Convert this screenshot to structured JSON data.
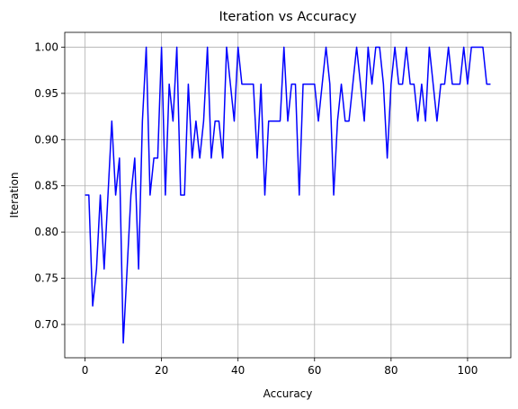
{
  "chart_data": {
    "type": "line",
    "title": "Iteration vs Accuracy",
    "xlabel": "Accuracy",
    "ylabel": "Iteration",
    "xlim": [
      -5.3,
      111.3
    ],
    "ylim": [
      0.664,
      1.016
    ],
    "xticks": [
      0,
      20,
      40,
      60,
      80,
      100
    ],
    "xtick_labels": [
      "0",
      "20",
      "40",
      "60",
      "80",
      "100"
    ],
    "yticks": [
      0.7,
      0.75,
      0.8,
      0.85,
      0.9,
      0.95,
      1.0
    ],
    "ytick_labels": [
      "0.70",
      "0.75",
      "0.80",
      "0.85",
      "0.90",
      "0.95",
      "1.00"
    ],
    "grid": true,
    "series": [
      {
        "color": "#0000ff",
        "x": [
          0,
          1,
          2,
          3,
          4,
          5,
          6,
          7,
          8,
          9,
          10,
          11,
          12,
          13,
          14,
          15,
          16,
          17,
          18,
          19,
          20,
          21,
          22,
          23,
          24,
          25,
          26,
          27,
          28,
          29,
          30,
          31,
          32,
          33,
          34,
          35,
          36,
          37,
          38,
          39,
          40,
          41,
          42,
          43,
          44,
          45,
          46,
          47,
          48,
          49,
          50,
          51,
          52,
          53,
          54,
          55,
          56,
          57,
          58,
          59,
          60,
          61,
          62,
          63,
          64,
          65,
          66,
          67,
          68,
          69,
          70,
          71,
          72,
          73,
          74,
          75,
          76,
          77,
          78,
          79,
          80,
          81,
          82,
          83,
          84,
          85,
          86,
          87,
          88,
          89,
          90,
          91,
          92,
          93,
          94,
          95,
          96,
          97,
          98,
          99,
          100,
          101,
          102,
          103,
          104,
          105,
          106
        ],
        "y": [
          0.84,
          0.84,
          0.72,
          0.76,
          0.84,
          0.76,
          0.84,
          0.92,
          0.84,
          0.88,
          0.68,
          0.76,
          0.84,
          0.88,
          0.76,
          0.92,
          1.0,
          0.84,
          0.88,
          0.88,
          1.0,
          0.84,
          0.96,
          0.92,
          1.0,
          0.84,
          0.84,
          0.96,
          0.88,
          0.92,
          0.88,
          0.92,
          1.0,
          0.88,
          0.92,
          0.92,
          0.88,
          1.0,
          0.96,
          0.92,
          1.0,
          0.96,
          0.96,
          0.96,
          0.96,
          0.88,
          0.96,
          0.84,
          0.92,
          0.92,
          0.92,
          0.92,
          1.0,
          0.92,
          0.96,
          0.96,
          0.84,
          0.96,
          0.96,
          0.96,
          0.96,
          0.92,
          0.96,
          1.0,
          0.96,
          0.84,
          0.92,
          0.96,
          0.92,
          0.92,
          0.96,
          1.0,
          0.96,
          0.92,
          1.0,
          0.96,
          1.0,
          1.0,
          0.96,
          0.88,
          0.96,
          1.0,
          0.96,
          0.96,
          1.0,
          0.96,
          0.96,
          0.92,
          0.96,
          0.92,
          1.0,
          0.96,
          0.92,
          0.96,
          0.96,
          1.0,
          0.96,
          0.96,
          0.96,
          1.0,
          0.96,
          1.0,
          1.0,
          1.0,
          1.0,
          0.96,
          0.96
        ]
      }
    ]
  }
}
